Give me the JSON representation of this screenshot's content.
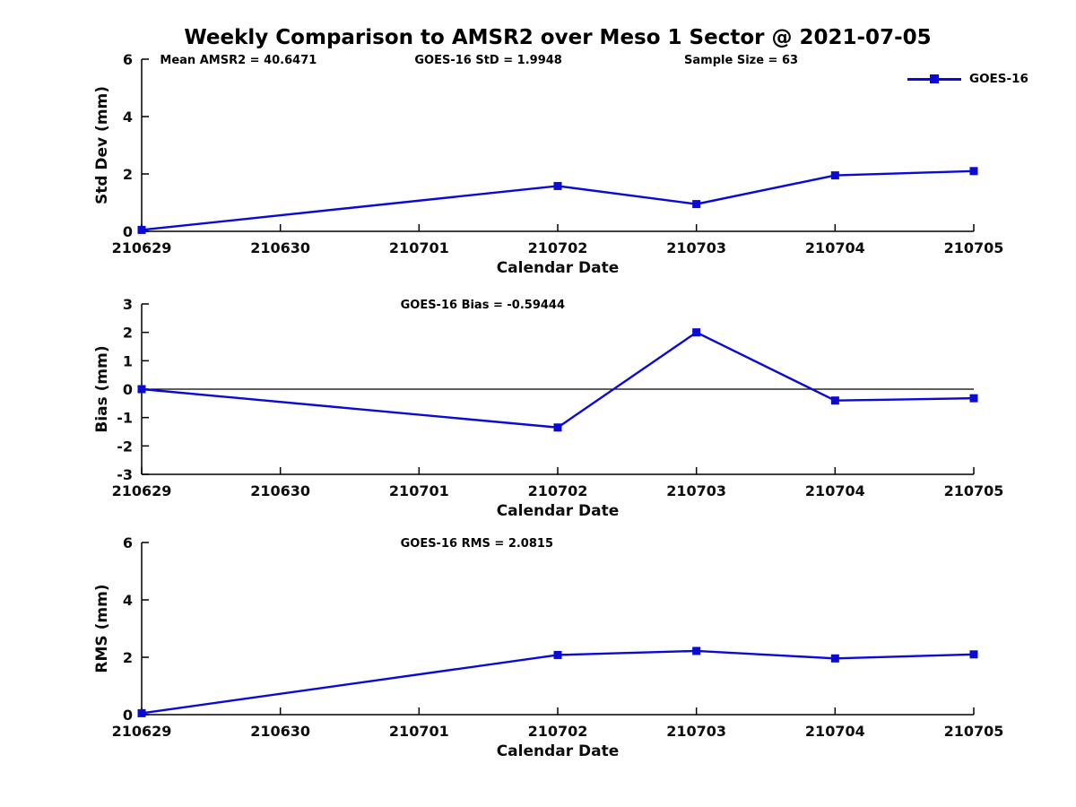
{
  "figure": {
    "title": "Weekly Comparison to AMSR2 over Meso 1 Sector @ 2021-07-05",
    "background_color": "#ffffff",
    "accent_color": "#0a0ad6",
    "axis_color": "#000000"
  },
  "legend": {
    "label": "GOES-16",
    "position": "top-right",
    "marker": "square"
  },
  "chart_data": [
    {
      "type": "line",
      "name": "std-dev",
      "xlabel": "Calendar Date",
      "ylabel": "Std Dev (mm)",
      "ylim": [
        0,
        6
      ],
      "yticks": [
        0,
        2,
        4,
        6
      ],
      "x_categories": [
        "210629",
        "210630",
        "210701",
        "210702",
        "210703",
        "210704",
        "210705"
      ],
      "grid": false,
      "zero_line": false,
      "annotations": [
        {
          "text": "Mean AMSR2 = 40.6471",
          "xfrac": 0.022
        },
        {
          "text": "GOES-16 StD = 1.9948",
          "xfrac": 0.328
        },
        {
          "text": "Sample Size = 63",
          "xfrac": 0.652
        }
      ],
      "series": [
        {
          "name": "GOES-16",
          "x": [
            "210629",
            "210702",
            "210703",
            "210704",
            "210705"
          ],
          "values": [
            0.05,
            1.58,
            0.95,
            1.95,
            2.1
          ]
        }
      ]
    },
    {
      "type": "line",
      "name": "bias",
      "xlabel": "Calendar Date",
      "ylabel": "Bias (mm)",
      "ylim": [
        -3,
        3
      ],
      "yticks": [
        -3,
        -2,
        -1,
        0,
        1,
        2,
        3
      ],
      "x_categories": [
        "210629",
        "210630",
        "210701",
        "210702",
        "210703",
        "210704",
        "210705"
      ],
      "grid": false,
      "zero_line": true,
      "annotations": [
        {
          "text": "GOES-16 Bias  = -0.59444",
          "xfrac": 0.311
        }
      ],
      "series": [
        {
          "name": "GOES-16",
          "x": [
            "210629",
            "210702",
            "210703",
            "210704",
            "210705"
          ],
          "values": [
            0.0,
            -1.35,
            2.0,
            -0.4,
            -0.32
          ]
        }
      ]
    },
    {
      "type": "line",
      "name": "rms",
      "xlabel": "Calendar Date",
      "ylabel": "RMS (mm)",
      "ylim": [
        0,
        6
      ],
      "yticks": [
        0,
        2,
        4,
        6
      ],
      "x_categories": [
        "210629",
        "210630",
        "210701",
        "210702",
        "210703",
        "210704",
        "210705"
      ],
      "grid": false,
      "zero_line": false,
      "annotations": [
        {
          "text": "GOES-16 RMS = 2.0815",
          "xfrac": 0.311
        }
      ],
      "series": [
        {
          "name": "GOES-16",
          "x": [
            "210629",
            "210702",
            "210703",
            "210704",
            "210705"
          ],
          "values": [
            0.05,
            2.08,
            2.22,
            1.96,
            2.1
          ]
        }
      ]
    }
  ]
}
